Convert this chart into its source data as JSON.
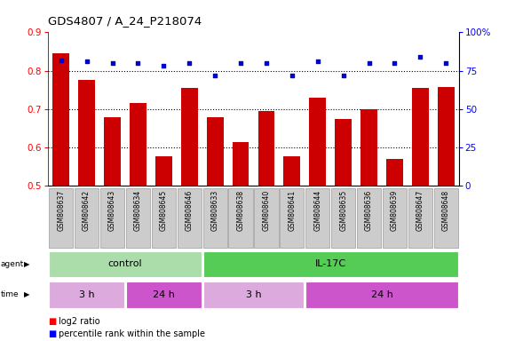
{
  "title": "GDS4807 / A_24_P218074",
  "samples": [
    "GSM808637",
    "GSM808642",
    "GSM808643",
    "GSM808634",
    "GSM808645",
    "GSM808646",
    "GSM808633",
    "GSM808638",
    "GSM808640",
    "GSM808641",
    "GSM808644",
    "GSM808635",
    "GSM808636",
    "GSM808639",
    "GSM808647",
    "GSM808648"
  ],
  "log2_ratio": [
    0.845,
    0.775,
    0.68,
    0.715,
    0.578,
    0.755,
    0.68,
    0.615,
    0.695,
    0.578,
    0.73,
    0.675,
    0.7,
    0.57,
    0.755,
    0.758
  ],
  "percentile": [
    82,
    81,
    80,
    80,
    78,
    80,
    72,
    80,
    80,
    72,
    81,
    72,
    80,
    80,
    84,
    80
  ],
  "bar_color": "#cc0000",
  "dot_color": "#0000cc",
  "left_ylim": [
    0.5,
    0.9
  ],
  "left_yticks": [
    0.5,
    0.6,
    0.7,
    0.8,
    0.9
  ],
  "right_ylim": [
    0,
    100
  ],
  "right_yticks": [
    0,
    25,
    50,
    75,
    100
  ],
  "right_yticklabels": [
    "0",
    "25",
    "50",
    "75",
    "100%"
  ],
  "gridlines": [
    0.6,
    0.7,
    0.8
  ],
  "agent_groups": [
    {
      "label": "control",
      "start": 0,
      "end": 5,
      "color": "#aaddaa"
    },
    {
      "label": "IL-17C",
      "start": 6,
      "end": 15,
      "color": "#55cc55"
    }
  ],
  "time_groups": [
    {
      "label": "3 h",
      "start": 0,
      "end": 2,
      "color": "#ddaadd"
    },
    {
      "label": "24 h",
      "start": 3,
      "end": 5,
      "color": "#cc55cc"
    },
    {
      "label": "3 h",
      "start": 6,
      "end": 9,
      "color": "#ddaadd"
    },
    {
      "label": "24 h",
      "start": 10,
      "end": 15,
      "color": "#cc55cc"
    }
  ],
  "label_bg": "#cccccc",
  "label_edge": "#999999"
}
